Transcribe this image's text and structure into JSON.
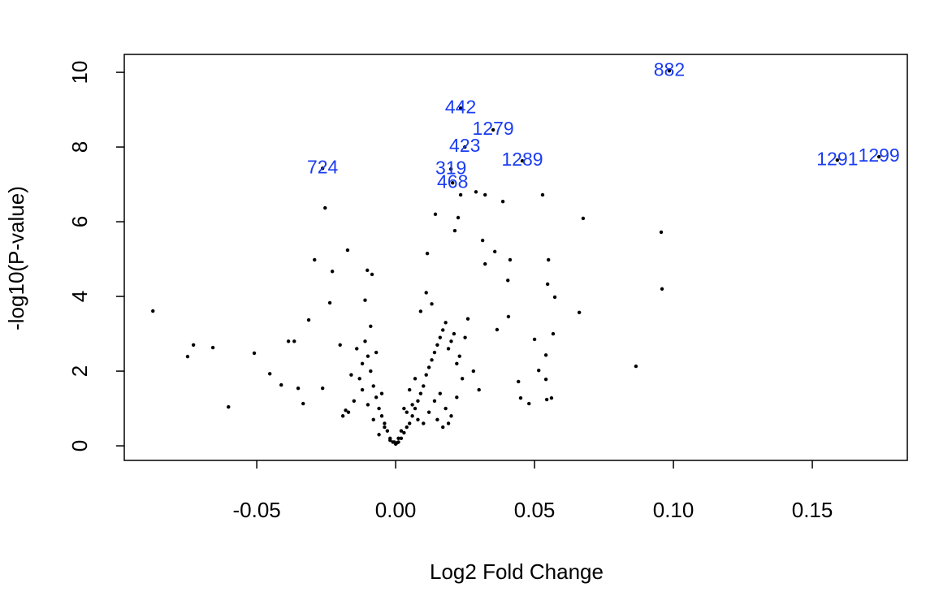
{
  "chart_data": {
    "type": "scatter",
    "x_label": "Log2 Fold Change",
    "y_label": "-log10(P-value)",
    "xlim": [
      -0.0977,
      0.1842
    ],
    "ylim": [
      -0.39,
      10.48
    ],
    "xticks": [
      -0.05,
      0.0,
      0.05,
      0.1,
      0.15
    ],
    "yticks": [
      0,
      2,
      4,
      6,
      8,
      10
    ],
    "xtick_labels": [
      "-0.05",
      "0.00",
      "0.05",
      "0.10",
      "0.15"
    ],
    "series": [
      {
        "color": "#000000",
        "x": [
          -0.0874,
          -0.0728,
          -0.0749,
          -0.0658,
          -0.0602,
          -0.0509,
          -0.0453,
          -0.0412,
          -0.0292,
          -0.0254,
          -0.0228,
          -0.0173,
          -0.0237,
          -0.0102,
          -0.0085,
          -0.0313,
          -0.0386,
          -0.0365,
          -0.0351,
          -0.0333,
          -0.0263,
          0.0143,
          0.0234,
          0.0289,
          0.0322,
          0.0386,
          0.0529,
          0.0675,
          0.0956,
          0.0959,
          0.0865,
          0.0661,
          0.055,
          0.0547,
          0.0573,
          0.0567,
          0.05,
          0.0541,
          0.0541,
          0.0561,
          0.0544,
          0.0515,
          0.048,
          0.045,
          0.0442,
          0.0412,
          0.0404,
          0.0406,
          0.0365,
          0.0313,
          0.0357,
          0.0322,
          0.0114,
          0.0225,
          0.0213,
          -0.002,
          -0.003,
          -0.004,
          -0.005,
          -0.006,
          -0.007,
          -0.008,
          -0.009,
          -0.01,
          -0.011,
          -0.012,
          -0.013,
          -0.015,
          -0.017,
          -0.019,
          -0.006,
          -0.008,
          -0.01,
          -0.012,
          -0.014,
          -0.009,
          -0.011,
          -0.004,
          -0.007,
          -0.016,
          -0.02,
          -0.018,
          -0.005,
          -0.001,
          -0.002,
          0.001,
          0.002,
          0.003,
          0.004,
          0.005,
          0.006,
          0.007,
          0.008,
          0.009,
          0.01,
          0.011,
          0.012,
          0.013,
          0.014,
          0.015,
          0.016,
          0.017,
          0.018,
          0.019,
          0.02,
          0.021,
          0.022,
          0.023,
          0.024,
          0.025,
          0.026,
          0.028,
          0.03,
          0.004,
          0.006,
          0.008,
          0.01,
          0.012,
          0.014,
          0.016,
          0.018,
          0.02,
          0.022,
          0.009,
          0.011,
          0.013,
          0.015,
          0.017,
          0.019,
          0.005,
          0.007,
          0.003,
          0.002,
          0.001,
          0.0,
          0.0005,
          -0.0005
        ],
        "values": [
          3.61,
          2.7,
          2.39,
          2.63,
          1.04,
          2.48,
          1.93,
          1.63,
          4.98,
          6.37,
          4.67,
          5.24,
          3.83,
          4.7,
          4.59,
          3.37,
          2.8,
          2.8,
          1.54,
          1.13,
          1.54,
          6.2,
          6.72,
          6.8,
          6.72,
          6.54,
          6.72,
          6.09,
          5.72,
          4.2,
          2.13,
          3.57,
          4.98,
          4.33,
          3.98,
          3.0,
          2.85,
          2.43,
          1.78,
          1.28,
          1.24,
          2.02,
          1.13,
          1.28,
          1.72,
          4.98,
          4.43,
          3.46,
          3.11,
          5.5,
          5.2,
          4.87,
          5.15,
          6.11,
          5.76,
          0.2,
          0.4,
          0.6,
          0.8,
          1.0,
          1.3,
          1.6,
          2.0,
          2.4,
          2.8,
          2.2,
          1.8,
          1.2,
          0.9,
          0.8,
          0.3,
          0.7,
          1.1,
          1.5,
          2.6,
          3.2,
          3.9,
          0.5,
          2.5,
          1.9,
          2.7,
          0.95,
          1.4,
          0.1,
          0.15,
          0.1,
          0.2,
          0.35,
          0.5,
          0.6,
          0.8,
          1.0,
          1.2,
          1.4,
          1.6,
          1.9,
          2.1,
          2.3,
          2.5,
          2.7,
          2.9,
          3.1,
          3.3,
          2.6,
          2.8,
          3.0,
          2.2,
          2.4,
          1.8,
          2.9,
          3.4,
          2.0,
          1.5,
          0.9,
          1.1,
          0.7,
          0.6,
          0.9,
          1.2,
          1.4,
          1.0,
          0.8,
          1.3,
          3.6,
          4.1,
          3.8,
          0.7,
          0.5,
          0.6,
          1.5,
          1.8,
          1.0,
          0.4,
          0.2,
          0.05,
          0.08,
          0.1
        ]
      },
      {
        "color": "#1a3cf2",
        "x": [
          0.0985,
          0.0234,
          0.0351,
          0.0249,
          0.0456,
          -0.0263,
          0.0199,
          0.0205,
          0.159,
          0.174
        ],
        "values": [
          10.04,
          9.04,
          8.46,
          8.0,
          7.63,
          7.43,
          7.41,
          7.04,
          7.65,
          7.74
        ],
        "labels": [
          "882",
          "442",
          "1279",
          "423",
          "1289",
          "724",
          "319",
          "468",
          "1291",
          "1299"
        ]
      }
    ]
  }
}
